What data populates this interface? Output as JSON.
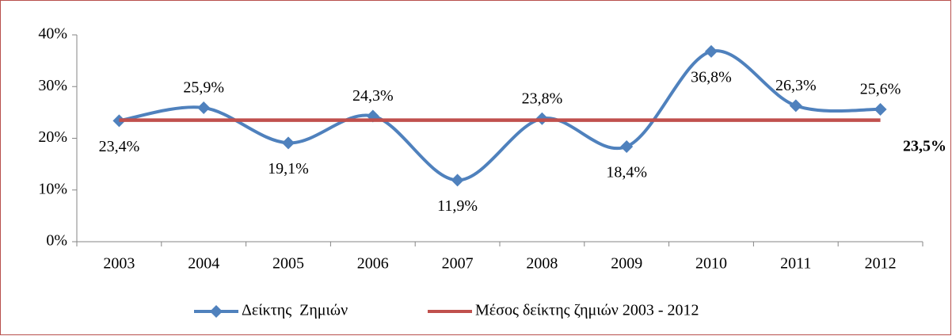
{
  "chart_data": {
    "type": "line",
    "categories": [
      "2003",
      "2004",
      "2005",
      "2006",
      "2007",
      "2008",
      "2009",
      "2010",
      "2011",
      "2012"
    ],
    "series": [
      {
        "name": "Δείκτης  Ζημιών",
        "color": "#4f81bd",
        "values": [
          23.4,
          25.9,
          19.1,
          24.3,
          11.9,
          23.8,
          18.4,
          36.8,
          26.3,
          25.6
        ],
        "value_labels": [
          "23,4%",
          "25,9%",
          "19,1%",
          "24,3%",
          "11,9%",
          "23,8%",
          "18,4%",
          "36,8%",
          "26,3%",
          "25,6%"
        ]
      },
      {
        "name": "Μέσος δείκτης ζημιών 2003 - 2012",
        "color": "#c0504d",
        "values": [
          23.5,
          23.5,
          23.5,
          23.5,
          23.5,
          23.5,
          23.5,
          23.5,
          23.5,
          23.5
        ],
        "value_labels": [
          null,
          null,
          null,
          null,
          null,
          null,
          null,
          null,
          null,
          "23,5%"
        ]
      }
    ],
    "ylim": [
      0,
      40
    ],
    "yticks": [
      {
        "value": 0,
        "label": "0%"
      },
      {
        "value": 10,
        "label": "10%"
      },
      {
        "value": 20,
        "label": "20%"
      },
      {
        "value": 30,
        "label": "30%"
      },
      {
        "value": 40,
        "label": "40%"
      }
    ],
    "grid": false,
    "legend": "bottom"
  }
}
